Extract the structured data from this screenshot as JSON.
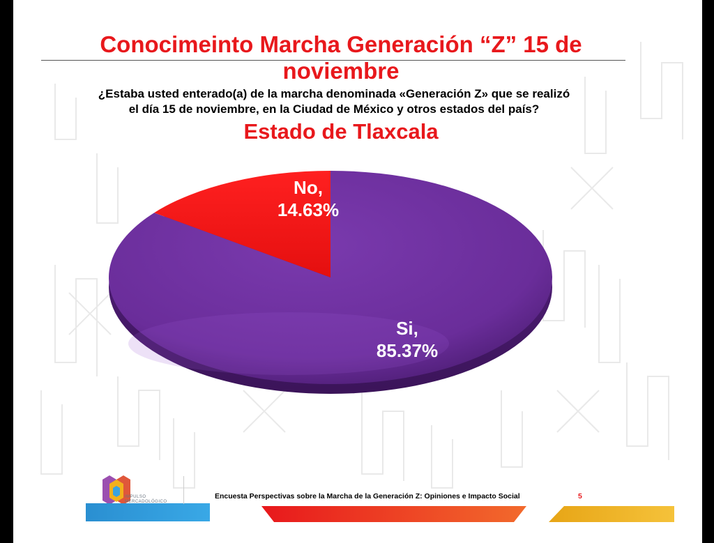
{
  "header": {
    "title_line1": "Conocimeinto Marcha Generación “Z” 15 de",
    "title_line2": "noviembre",
    "question_line1": "¿Estaba usted enterado(a) de la marcha denominada «Generación Z» que se realizó",
    "question_line2": "el día 15 de noviembre, en la Ciudad de México y otros estados del país?",
    "subtitle": "Estado de Tlaxcala"
  },
  "chart_data": {
    "type": "pie",
    "title": "Estado de Tlaxcala",
    "categories": [
      "Si",
      "No"
    ],
    "values": [
      85.37,
      14.63
    ],
    "unit": "%",
    "labels": [
      {
        "line1": "Si,",
        "line2": "85.37%"
      },
      {
        "line1": "No,",
        "line2": "14.63%"
      }
    ],
    "colors": [
      "#6a2d9a",
      "#ee1111"
    ],
    "style": "3d-flat-disc"
  },
  "footer": {
    "text": "Encuesta Perspectivas sobre la Marcha de la Generación Z: Opiniones e Impacto Social",
    "page_number": "5",
    "logo_line1": "IMPULSO",
    "logo_line2": "MERCADOLÓGICO"
  },
  "colors": {
    "accent_red": "#e8181c",
    "si_purple": "#6a2d9a",
    "no_red": "#ee1111",
    "logo_blue": "#2a8fd1",
    "bar_orange": "#f05a28",
    "bar_yellow": "#f0b419"
  }
}
